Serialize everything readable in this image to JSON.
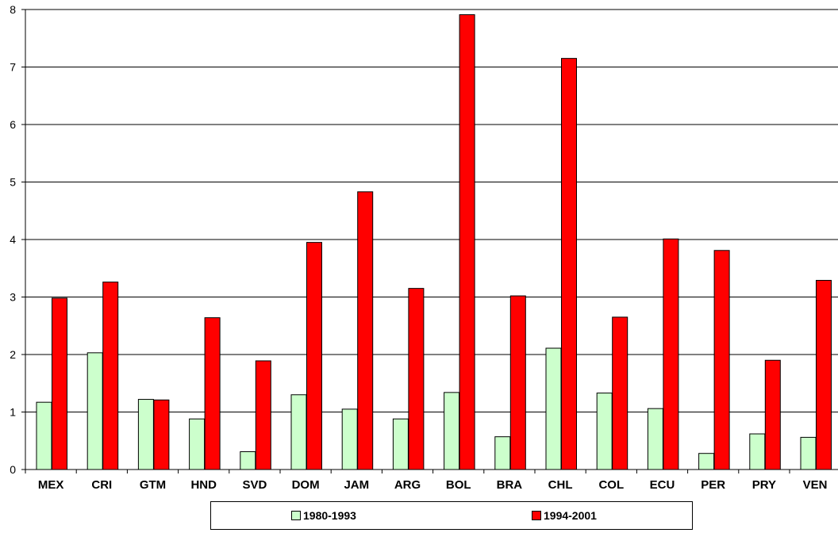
{
  "chart_data": {
    "type": "bar",
    "categories": [
      "MEX",
      "CRI",
      "GTM",
      "HND",
      "SVD",
      "DOM",
      "JAM",
      "ARG",
      "BOL",
      "BRA",
      "CHL",
      "COL",
      "ECU",
      "PER",
      "PRY",
      "VEN"
    ],
    "series": [
      {
        "name": "1980-1993",
        "color": "#ccffcc",
        "values": [
          1.17,
          2.03,
          1.22,
          0.88,
          0.31,
          1.3,
          1.05,
          0.88,
          1.34,
          0.57,
          2.11,
          1.33,
          1.06,
          0.28,
          0.62,
          0.56
        ]
      },
      {
        "name": "1994-2001",
        "color": "#ff0000",
        "values": [
          2.98,
          3.26,
          1.21,
          2.64,
          1.89,
          3.95,
          4.83,
          3.15,
          7.91,
          3.02,
          7.15,
          2.65,
          4.01,
          3.81,
          1.9,
          3.29
        ]
      }
    ],
    "ylim": [
      0,
      8
    ],
    "yticks": [
      "0",
      "1",
      "2",
      "3",
      "4",
      "5",
      "6",
      "7",
      "8"
    ],
    "grid": true,
    "legend_position": "bottom"
  }
}
